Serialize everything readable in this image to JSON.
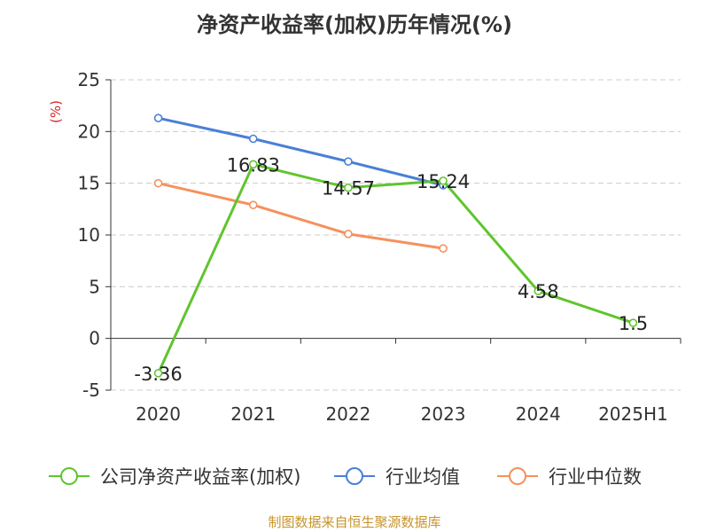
{
  "chart_data": {
    "type": "line",
    "title": "净资产收益率(加权)历年情况(%)",
    "ylabel": "(%)",
    "xlabel": "",
    "categories": [
      "2020",
      "2021",
      "2022",
      "2023",
      "2024",
      "2025H1"
    ],
    "ylim": [
      -5,
      25
    ],
    "yticks": [
      -5,
      0,
      5,
      10,
      15,
      20,
      25
    ],
    "grid": true,
    "legend": "bottom",
    "series": [
      {
        "name": "公司净资产收益率(加权)",
        "color": "#5fc52e",
        "values": [
          -3.36,
          16.83,
          14.57,
          15.24,
          4.58,
          1.5
        ],
        "labels": true
      },
      {
        "name": "行业均值",
        "color": "#4a7fd6",
        "values": [
          21.3,
          19.3,
          17.1,
          14.8,
          null,
          null
        ],
        "labels": false
      },
      {
        "name": "行业中位数",
        "color": "#f5915d",
        "values": [
          15.0,
          12.9,
          10.1,
          8.7,
          null,
          null
        ],
        "labels": false
      }
    ]
  },
  "footer": {
    "source": "制图数据来自恒生聚源数据库"
  }
}
